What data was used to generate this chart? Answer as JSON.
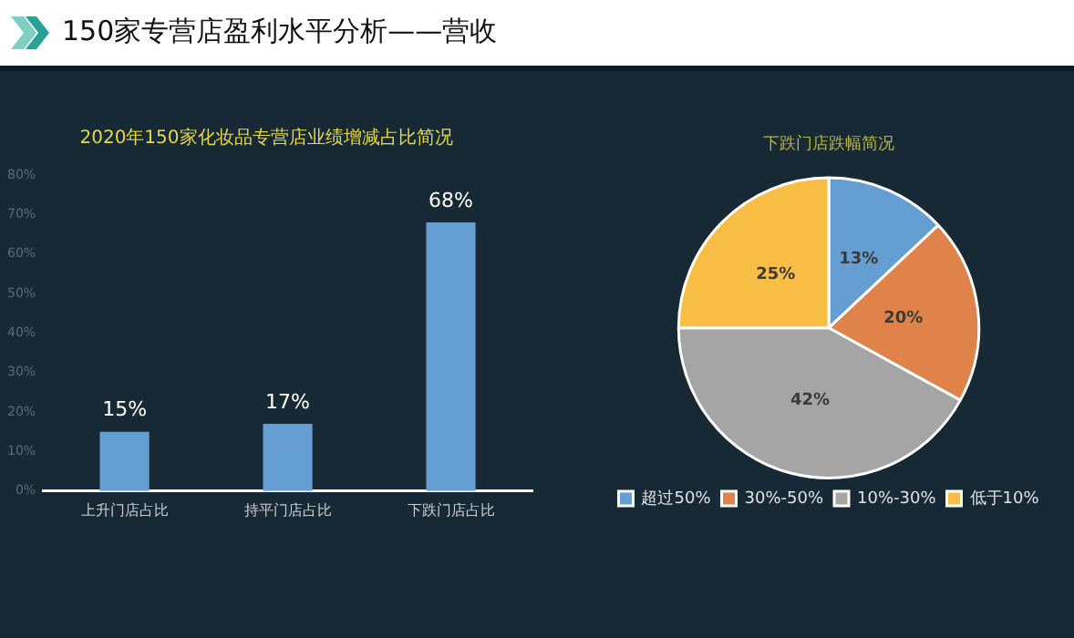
{
  "chart_data": [
    {
      "type": "other",
      "title": "150家专营店盈利水平分析——营收"
    },
    {
      "type": "bar",
      "title": "2020年150家化妆品专营店业绩增减占比简况",
      "categories": [
        "上升门店占比",
        "持平门店占比",
        "下跌门店占比"
      ],
      "values": [
        15,
        17,
        68
      ],
      "value_labels": [
        "15%",
        "17%",
        "68%"
      ],
      "color": "#659ed2",
      "ylim": [
        0,
        80
      ],
      "yticks": [
        {
          "value": 0,
          "label": "0%"
        },
        {
          "value": 10,
          "label": "10%"
        },
        {
          "value": 20,
          "label": "20%"
        },
        {
          "value": 30,
          "label": "30%"
        },
        {
          "value": 40,
          "label": "40%"
        },
        {
          "value": 50,
          "label": "50%"
        },
        {
          "value": 60,
          "label": "60%"
        },
        {
          "value": 70,
          "label": "70%"
        },
        {
          "value": 80,
          "label": "80%"
        }
      ],
      "grid": false
    },
    {
      "type": "pie",
      "title": "下跌门店跌幅简况",
      "categories": [
        "超过50%",
        "30%-50%",
        "10%-30%",
        "低于10%"
      ],
      "values": [
        13,
        20,
        42,
        25
      ],
      "value_labels": [
        "13%",
        "20%",
        "42%",
        "25%"
      ],
      "colors": [
        "#659ed2",
        "#e0834a",
        "#a5a5a5",
        "#f7bd45"
      ],
      "legend": "bottom"
    }
  ]
}
